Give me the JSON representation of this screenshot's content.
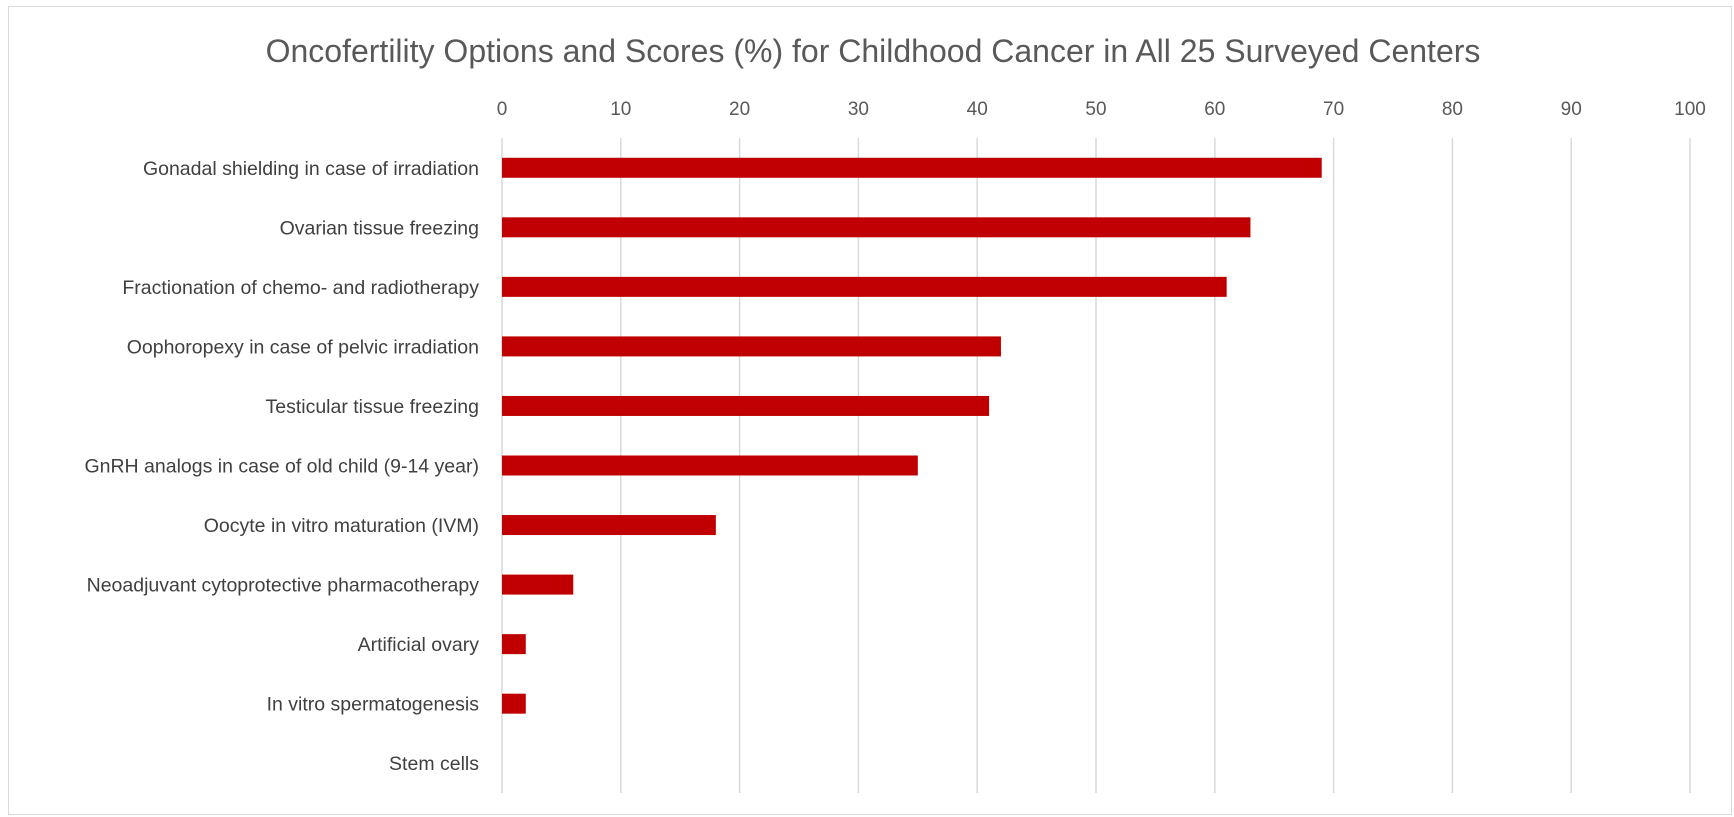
{
  "chart_data": {
    "type": "bar",
    "orientation": "horizontal",
    "title": "Oncofertility Options and Scores (%) for Childhood Cancer in All 25 Surveyed Centers",
    "xlabel": "",
    "ylabel": "",
    "xlim": [
      0,
      100
    ],
    "x_ticks": [
      "0",
      "10",
      "20",
      "30",
      "40",
      "50",
      "60",
      "70",
      "80",
      "90",
      "100"
    ],
    "x_axis_position": "top",
    "grid": true,
    "legend": "none",
    "bar_color": "#c00000",
    "categories": [
      "Gonadal shielding in case of irradiation",
      "Ovarian tissue freezing",
      "Fractionation of chemo- and radiotherapy",
      "Oophoropexy in case of pelvic irradiation",
      "Testicular tissue freezing",
      "GnRH analogs in case of old child (9-14 year)",
      "Oocyte in vitro maturation (IVM)",
      "Neoadjuvant cytoprotective pharmacotherapy",
      "Artificial ovary",
      "In vitro spermatogenesis",
      "Stem cells"
    ],
    "values": [
      69,
      63,
      61,
      42,
      41,
      35,
      18,
      6,
      2,
      2,
      0
    ]
  }
}
